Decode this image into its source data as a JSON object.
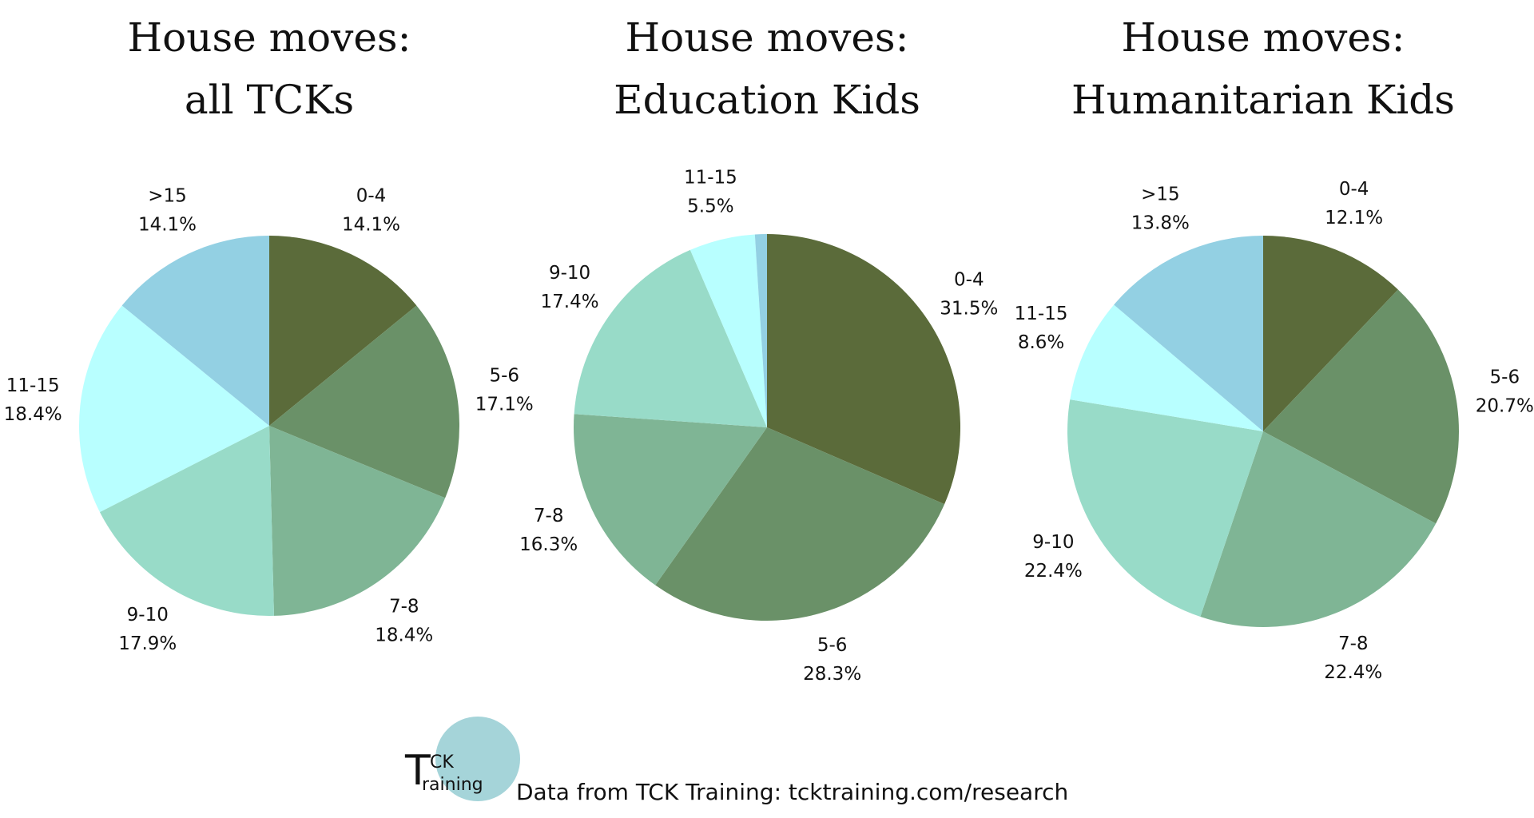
{
  "chart_data": [
    {
      "type": "pie",
      "title": [
        "House moves:",
        "all TCKs"
      ],
      "categories": [
        "0-4",
        "5-6",
        "7-8",
        "9-10",
        "11-15",
        ">15"
      ],
      "values": [
        14.1,
        17.1,
        18.4,
        17.9,
        18.4,
        14.1
      ],
      "value_labels": [
        "14.1%",
        "17.1%",
        "18.4%",
        "17.9%",
        "18.4%",
        "14.1%"
      ],
      "colors": [
        "#5b6b3a",
        "#6a9168",
        "#7fb595",
        "#98dbc8",
        "#b8ffff",
        "#93d0e3"
      ]
    },
    {
      "type": "pie",
      "title": [
        "House moves:",
        "Education Kids"
      ],
      "categories": [
        "0-4",
        "5-6",
        "7-8",
        "9-10",
        "11-15",
        null
      ],
      "values": [
        31.5,
        28.3,
        16.3,
        17.4,
        5.5,
        1.0
      ],
      "value_labels": [
        "31.5%",
        "28.3%",
        "16.3%",
        "17.4%",
        "5.5%",
        null
      ],
      "colors": [
        "#5b6b3a",
        "#6a9168",
        "#7fb595",
        "#98dbc8",
        "#b8ffff",
        "#93d0e3"
      ]
    },
    {
      "type": "pie",
      "title": [
        "House moves:",
        "Humanitarian Kids"
      ],
      "categories": [
        "0-4",
        "5-6",
        "7-8",
        "9-10",
        "11-15",
        ">15"
      ],
      "values": [
        12.1,
        20.7,
        22.4,
        22.4,
        8.6,
        13.8
      ],
      "value_labels": [
        "12.1%",
        "20.7%",
        "22.4%",
        "22.4%",
        "8.6%",
        "13.8%"
      ],
      "colors": [
        "#5b6b3a",
        "#6a9168",
        "#7fb595",
        "#98dbc8",
        "#b8ffff",
        "#93d0e3"
      ]
    }
  ],
  "footer": {
    "source": "Data from TCK Training: tcktraining.com/research",
    "logo": {
      "initial": "T",
      "top": "CK",
      "bottom": "raining"
    }
  }
}
